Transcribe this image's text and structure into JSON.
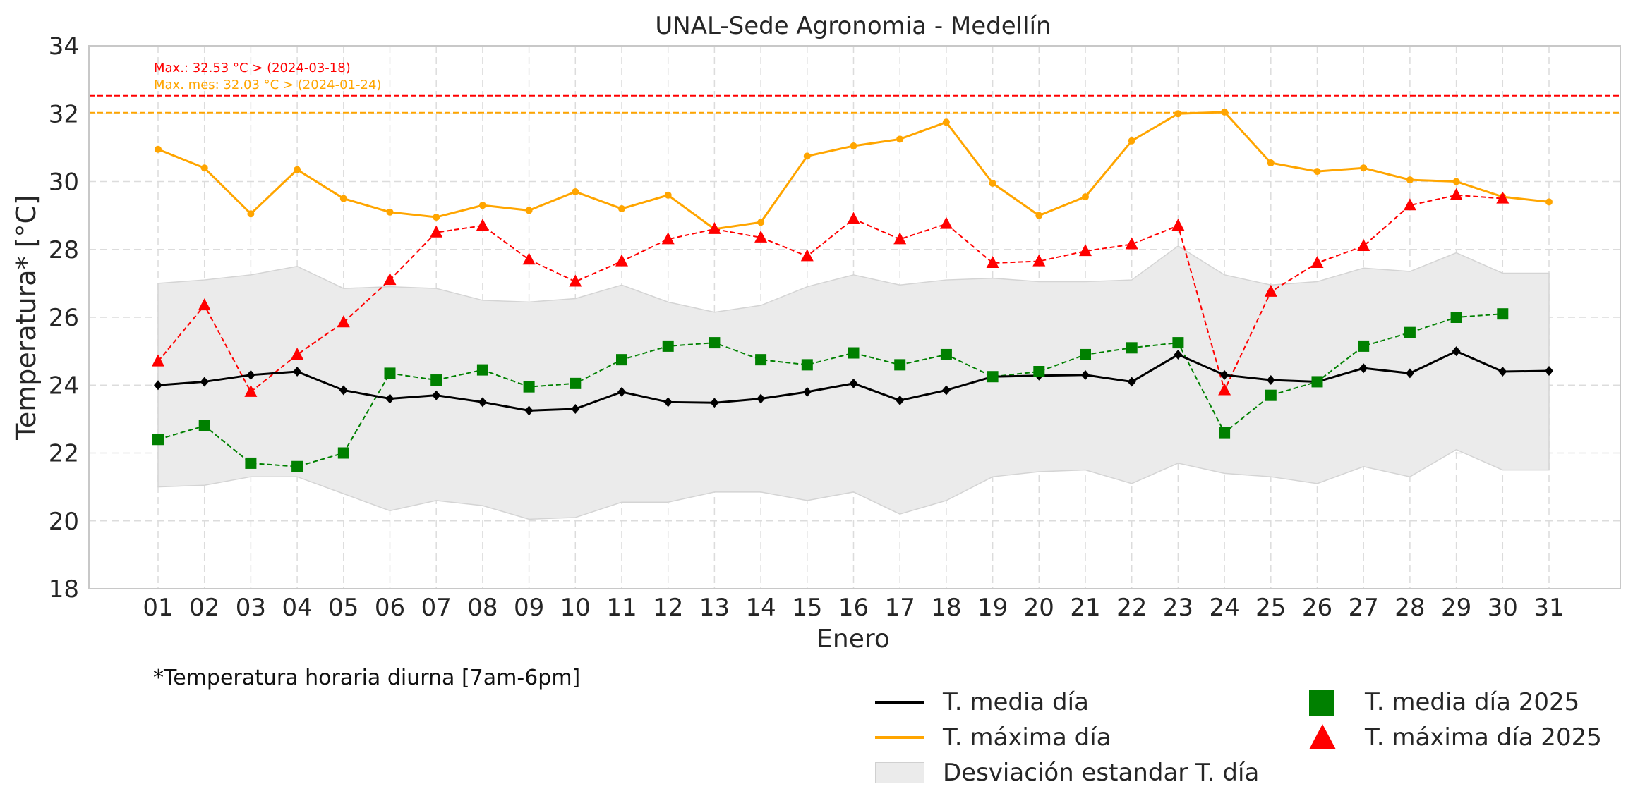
{
  "chart_data": {
    "type": "line",
    "title": "UNAL-Sede Agronomia - Medellín",
    "xlabel": "Enero",
    "ylabel": "Temperatura* [°C]",
    "ylim": [
      18,
      34
    ],
    "yticks": [
      18,
      20,
      22,
      24,
      26,
      28,
      30,
      32,
      34
    ],
    "grid": true,
    "categories": [
      "01",
      "02",
      "03",
      "04",
      "05",
      "06",
      "07",
      "08",
      "09",
      "10",
      "11",
      "12",
      "13",
      "14",
      "15",
      "16",
      "17",
      "18",
      "19",
      "20",
      "21",
      "22",
      "23",
      "24",
      "25",
      "26",
      "27",
      "28",
      "29",
      "30",
      "31"
    ],
    "series": [
      {
        "name": "T. media día",
        "color": "#000000",
        "values": [
          24.0,
          24.1,
          24.3,
          24.4,
          23.85,
          23.6,
          23.7,
          23.5,
          23.25,
          23.3,
          23.8,
          23.5,
          23.48,
          23.6,
          23.8,
          24.05,
          23.55,
          23.85,
          24.25,
          24.28,
          24.3,
          24.1,
          24.9,
          24.3,
          24.15,
          24.1,
          24.5,
          24.35,
          25.0,
          24.4,
          24.42
        ]
      },
      {
        "name": "T. máxima día",
        "color": "#ffa500",
        "values": [
          30.95,
          30.4,
          29.05,
          30.35,
          29.5,
          29.1,
          28.95,
          29.3,
          29.15,
          29.7,
          29.2,
          29.6,
          28.6,
          28.8,
          30.75,
          31.05,
          31.25,
          31.75,
          29.95,
          29.0,
          29.55,
          31.2,
          32.0,
          32.05,
          30.55,
          30.3,
          30.4,
          30.05,
          30.0,
          29.55,
          29.4
        ]
      },
      {
        "name": "T. media día 2025",
        "color": "#008000",
        "values": [
          22.4,
          22.8,
          21.7,
          21.6,
          22.0,
          24.35,
          24.15,
          24.45,
          23.95,
          24.05,
          24.75,
          25.15,
          25.25,
          24.75,
          24.6,
          24.95,
          24.6,
          24.9,
          24.25,
          24.4,
          24.9,
          25.1,
          25.25,
          22.6,
          23.7,
          24.1,
          25.15,
          25.55,
          26.0,
          26.1,
          null
        ]
      },
      {
        "name": "T. máxima día 2025",
        "color": "#ff0000",
        "values": [
          24.7,
          26.35,
          23.8,
          24.9,
          25.85,
          27.1,
          28.5,
          28.7,
          27.7,
          27.05,
          27.65,
          28.3,
          28.6,
          28.35,
          27.8,
          28.9,
          28.3,
          28.75,
          27.6,
          27.65,
          27.95,
          28.15,
          28.7,
          23.85,
          26.75,
          27.6,
          28.1,
          29.3,
          29.6,
          29.5,
          null
        ]
      }
    ],
    "band": {
      "name": "Desviación estandar T. día",
      "color": "#ebebeb",
      "upper": [
        27.0,
        27.1,
        27.25,
        27.5,
        26.85,
        26.9,
        26.85,
        26.5,
        26.45,
        26.55,
        26.95,
        26.45,
        26.15,
        26.35,
        26.9,
        27.25,
        26.95,
        27.1,
        27.15,
        27.05,
        27.05,
        27.1,
        28.1,
        27.25,
        26.95,
        27.05,
        27.45,
        27.35,
        27.9,
        27.3,
        27.3
      ],
      "lower": [
        21.0,
        21.05,
        21.3,
        21.3,
        20.8,
        20.3,
        20.6,
        20.45,
        20.05,
        20.1,
        20.55,
        20.55,
        20.85,
        20.85,
        20.6,
        20.85,
        20.2,
        20.6,
        21.3,
        21.45,
        21.5,
        21.1,
        21.7,
        21.4,
        21.3,
        21.1,
        21.6,
        21.3,
        22.1,
        21.5,
        21.5
      ]
    },
    "reference_lines": [
      {
        "value": 32.53,
        "color": "#ff0000",
        "label": "Max.: 32.53 °C  >  (2024-03-18)"
      },
      {
        "value": 32.03,
        "color": "#ffa500",
        "label": "Max. mes: 32.03 °C  >  (2024-01-24)"
      }
    ],
    "footnote": "*Temperatura horaria diurna [7am-6pm]",
    "legend_position": "bottom-right"
  },
  "legend": {
    "media": "T. media día",
    "maxima": "T. máxima día",
    "desviacion": "Desviación estandar T. día",
    "media_2025": "T. media día 2025",
    "maxima_2025": "T. máxima día 2025"
  }
}
